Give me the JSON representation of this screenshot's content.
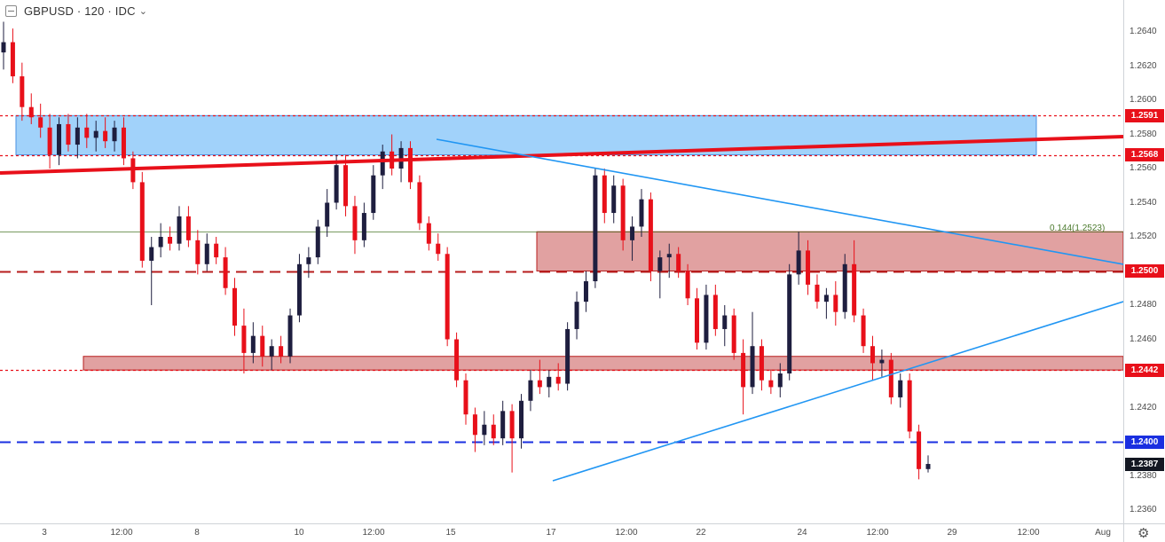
{
  "legend": {
    "symbol": "GBPUSD",
    "interval": "120",
    "source": "IDC",
    "separator": "·"
  },
  "price_axis": {
    "ticks": [
      "1.2640",
      "1.2620",
      "1.2600",
      "1.2580",
      "1.2560",
      "1.2540",
      "1.2520",
      "1.2480",
      "1.2460",
      "1.2420",
      "1.2380",
      "1.2360"
    ],
    "tick_values": [
      1.264,
      1.262,
      1.26,
      1.258,
      1.256,
      1.254,
      1.252,
      1.248,
      1.246,
      1.242,
      1.238,
      1.236
    ],
    "badges": [
      {
        "label": "1.2591",
        "value": 1.2591,
        "color": "#e8101a"
      },
      {
        "label": "1.2568",
        "value": 1.2568,
        "color": "#e8101a"
      },
      {
        "label": "1.2500",
        "value": 1.25,
        "color": "#e8101a"
      },
      {
        "label": "1.2442",
        "value": 1.2442,
        "color": "#e8101a"
      },
      {
        "label": "1.2400",
        "value": 1.24,
        "color": "#1a2fe0"
      },
      {
        "label": "1.2387",
        "value": 1.2387,
        "color": "#131722"
      }
    ]
  },
  "time_axis": {
    "labels": [
      "3",
      "12:00",
      "8",
      "10",
      "12:00",
      "15",
      "17",
      "12:00",
      "22",
      "24",
      "12:00",
      "29",
      "12:00",
      "Aug"
    ]
  },
  "fib_label": "0.144(1.2523)",
  "chart_data": {
    "type": "candlestick",
    "symbol": "GBPUSD",
    "timeframe": "120",
    "y_range": [
      1.2355,
      1.266
    ],
    "horizontal_levels": [
      {
        "value": 1.2591,
        "style": "dotted",
        "color": "#e8101a"
      },
      {
        "value": 1.2568,
        "style": "dotted",
        "color": "#e8101a"
      },
      {
        "value": 1.25,
        "style": "dashed",
        "color": "#b71c1c"
      },
      {
        "value": 1.2442,
        "style": "dotted",
        "color": "#e8101a"
      },
      {
        "value": 1.24,
        "style": "dashed",
        "color": "#1a2fe0"
      },
      {
        "value": 1.2523,
        "style": "solid",
        "color": "#4b7a2d",
        "label": "0.144(1.2523)"
      }
    ],
    "zones": [
      {
        "from": 1.2568,
        "to": 1.2591,
        "color": "#90caf9"
      },
      {
        "from": 1.25,
        "to": 1.2523,
        "color": "#d98a8a"
      },
      {
        "from": 1.2442,
        "to": 1.245,
        "color": "#d98a8a"
      }
    ],
    "last_price": 1.2387,
    "candles": [
      [
        1.2628,
        1.2646,
        1.2618,
        1.2634
      ],
      [
        1.2634,
        1.2642,
        1.261,
        1.2614
      ],
      [
        1.2614,
        1.2622,
        1.2588,
        1.2596
      ],
      [
        1.2596,
        1.2604,
        1.2586,
        1.259
      ],
      [
        1.259,
        1.2598,
        1.2578,
        1.2584
      ],
      [
        1.2584,
        1.2592,
        1.256,
        1.2568
      ],
      [
        1.2568,
        1.259,
        1.2562,
        1.2586
      ],
      [
        1.2586,
        1.2592,
        1.257,
        1.2574
      ],
      [
        1.2574,
        1.259,
        1.2566,
        1.2584
      ],
      [
        1.2584,
        1.2592,
        1.2572,
        1.2578
      ],
      [
        1.2578,
        1.2588,
        1.257,
        1.2582
      ],
      [
        1.2582,
        1.259,
        1.2572,
        1.2576
      ],
      [
        1.2576,
        1.2588,
        1.257,
        1.2584
      ],
      [
        1.2584,
        1.259,
        1.2562,
        1.2566
      ],
      [
        1.2566,
        1.257,
        1.2548,
        1.2552
      ],
      [
        1.2552,
        1.2558,
        1.2502,
        1.2506
      ],
      [
        1.2506,
        1.252,
        1.248,
        1.2514
      ],
      [
        1.2514,
        1.2528,
        1.2508,
        1.252
      ],
      [
        1.252,
        1.2526,
        1.2512,
        1.2516
      ],
      [
        1.2516,
        1.2538,
        1.2512,
        1.2532
      ],
      [
        1.2532,
        1.2538,
        1.2514,
        1.2518
      ],
      [
        1.2518,
        1.2524,
        1.2498,
        1.2504
      ],
      [
        1.2504,
        1.2522,
        1.25,
        1.2516
      ],
      [
        1.2516,
        1.252,
        1.2504,
        1.2508
      ],
      [
        1.2508,
        1.2514,
        1.2486,
        1.249
      ],
      [
        1.249,
        1.2496,
        1.2462,
        1.2468
      ],
      [
        1.2468,
        1.2478,
        1.244,
        1.2452
      ],
      [
        1.2452,
        1.247,
        1.2446,
        1.2462
      ],
      [
        1.2462,
        1.2468,
        1.2444,
        1.245
      ],
      [
        1.245,
        1.246,
        1.2442,
        1.2456
      ],
      [
        1.2456,
        1.2462,
        1.2446,
        1.245
      ],
      [
        1.245,
        1.2478,
        1.2446,
        1.2474
      ],
      [
        1.2474,
        1.251,
        1.247,
        1.2504
      ],
      [
        1.2504,
        1.2514,
        1.2496,
        1.2508
      ],
      [
        1.2508,
        1.253,
        1.2504,
        1.2526
      ],
      [
        1.2526,
        1.2548,
        1.252,
        1.254
      ],
      [
        1.254,
        1.2568,
        1.2536,
        1.2562
      ],
      [
        1.2562,
        1.2568,
        1.2532,
        1.2538
      ],
      [
        1.2538,
        1.2544,
        1.251,
        1.2518
      ],
      [
        1.2518,
        1.254,
        1.2514,
        1.2534
      ],
      [
        1.2534,
        1.2562,
        1.253,
        1.2556
      ],
      [
        1.2556,
        1.2574,
        1.2548,
        1.257
      ],
      [
        1.257,
        1.258,
        1.2556,
        1.256
      ],
      [
        1.256,
        1.2576,
        1.2552,
        1.2572
      ],
      [
        1.2572,
        1.2576,
        1.2548,
        1.2552
      ],
      [
        1.2552,
        1.2556,
        1.2524,
        1.2528
      ],
      [
        1.2528,
        1.2532,
        1.2512,
        1.2516
      ],
      [
        1.2516,
        1.2522,
        1.2506,
        1.251
      ],
      [
        1.251,
        1.2514,
        1.2456,
        1.246
      ],
      [
        1.246,
        1.2464,
        1.2432,
        1.2436
      ],
      [
        1.2436,
        1.244,
        1.241,
        1.2416
      ],
      [
        1.2416,
        1.242,
        1.2394,
        1.2404
      ],
      [
        1.2404,
        1.2418,
        1.2398,
        1.241
      ],
      [
        1.241,
        1.2416,
        1.2398,
        1.2402
      ],
      [
        1.2402,
        1.2424,
        1.2398,
        1.2418
      ],
      [
        1.2418,
        1.2422,
        1.2382,
        1.2402
      ],
      [
        1.2402,
        1.2428,
        1.2396,
        1.2424
      ],
      [
        1.2424,
        1.2442,
        1.2418,
        1.2436
      ],
      [
        1.2436,
        1.2448,
        1.2428,
        1.2432
      ],
      [
        1.2432,
        1.2442,
        1.2426,
        1.2438
      ],
      [
        1.2438,
        1.2446,
        1.243,
        1.2434
      ],
      [
        1.2434,
        1.247,
        1.243,
        1.2466
      ],
      [
        1.2466,
        1.2488,
        1.246,
        1.2482
      ],
      [
        1.2482,
        1.25,
        1.2476,
        1.2494
      ],
      [
        1.2494,
        1.256,
        1.249,
        1.2556
      ],
      [
        1.2556,
        1.256,
        1.2528,
        1.2534
      ],
      [
        1.2534,
        1.2556,
        1.2528,
        1.255
      ],
      [
        1.255,
        1.2554,
        1.2512,
        1.2518
      ],
      [
        1.2518,
        1.2532,
        1.2506,
        1.2526
      ],
      [
        1.2526,
        1.2548,
        1.252,
        1.2542
      ],
      [
        1.2542,
        1.2546,
        1.2494,
        1.25
      ],
      [
        1.25,
        1.2512,
        1.2484,
        1.2508
      ],
      [
        1.2508,
        1.2516,
        1.2496,
        1.251
      ],
      [
        1.251,
        1.2514,
        1.2496,
        1.25
      ],
      [
        1.25,
        1.2504,
        1.248,
        1.2484
      ],
      [
        1.2484,
        1.249,
        1.2454,
        1.2458
      ],
      [
        1.2458,
        1.2492,
        1.2454,
        1.2486
      ],
      [
        1.2486,
        1.2492,
        1.2462,
        1.2466
      ],
      [
        1.2466,
        1.248,
        1.2456,
        1.2474
      ],
      [
        1.2474,
        1.2478,
        1.2448,
        1.2452
      ],
      [
        1.2452,
        1.246,
        1.2416,
        1.2432
      ],
      [
        1.2432,
        1.2476,
        1.2428,
        1.2456
      ],
      [
        1.2456,
        1.246,
        1.243,
        1.2436
      ],
      [
        1.2436,
        1.2442,
        1.2428,
        1.2432
      ],
      [
        1.2432,
        1.2446,
        1.2426,
        1.244
      ],
      [
        1.244,
        1.2504,
        1.2436,
        1.2498
      ],
      [
        1.2498,
        1.2523,
        1.2492,
        1.2512
      ],
      [
        1.2512,
        1.2518,
        1.2486,
        1.2492
      ],
      [
        1.2492,
        1.2498,
        1.2478,
        1.2482
      ],
      [
        1.2482,
        1.249,
        1.2472,
        1.2486
      ],
      [
        1.2486,
        1.2494,
        1.2468,
        1.2476
      ],
      [
        1.2476,
        1.251,
        1.2472,
        1.2504
      ],
      [
        1.2504,
        1.2518,
        1.247,
        1.2474
      ],
      [
        1.2474,
        1.2478,
        1.2452,
        1.2456
      ],
      [
        1.2456,
        1.2462,
        1.2436,
        1.2446
      ],
      [
        1.2446,
        1.2454,
        1.2438,
        1.2448
      ],
      [
        1.2448,
        1.2452,
        1.2422,
        1.2426
      ],
      [
        1.2426,
        1.244,
        1.242,
        1.2436
      ],
      [
        1.2436,
        1.244,
        1.2402,
        1.2406
      ],
      [
        1.2406,
        1.241,
        1.2378,
        1.2384
      ],
      [
        1.2384,
        1.2392,
        1.2382,
        1.2387
      ]
    ]
  }
}
